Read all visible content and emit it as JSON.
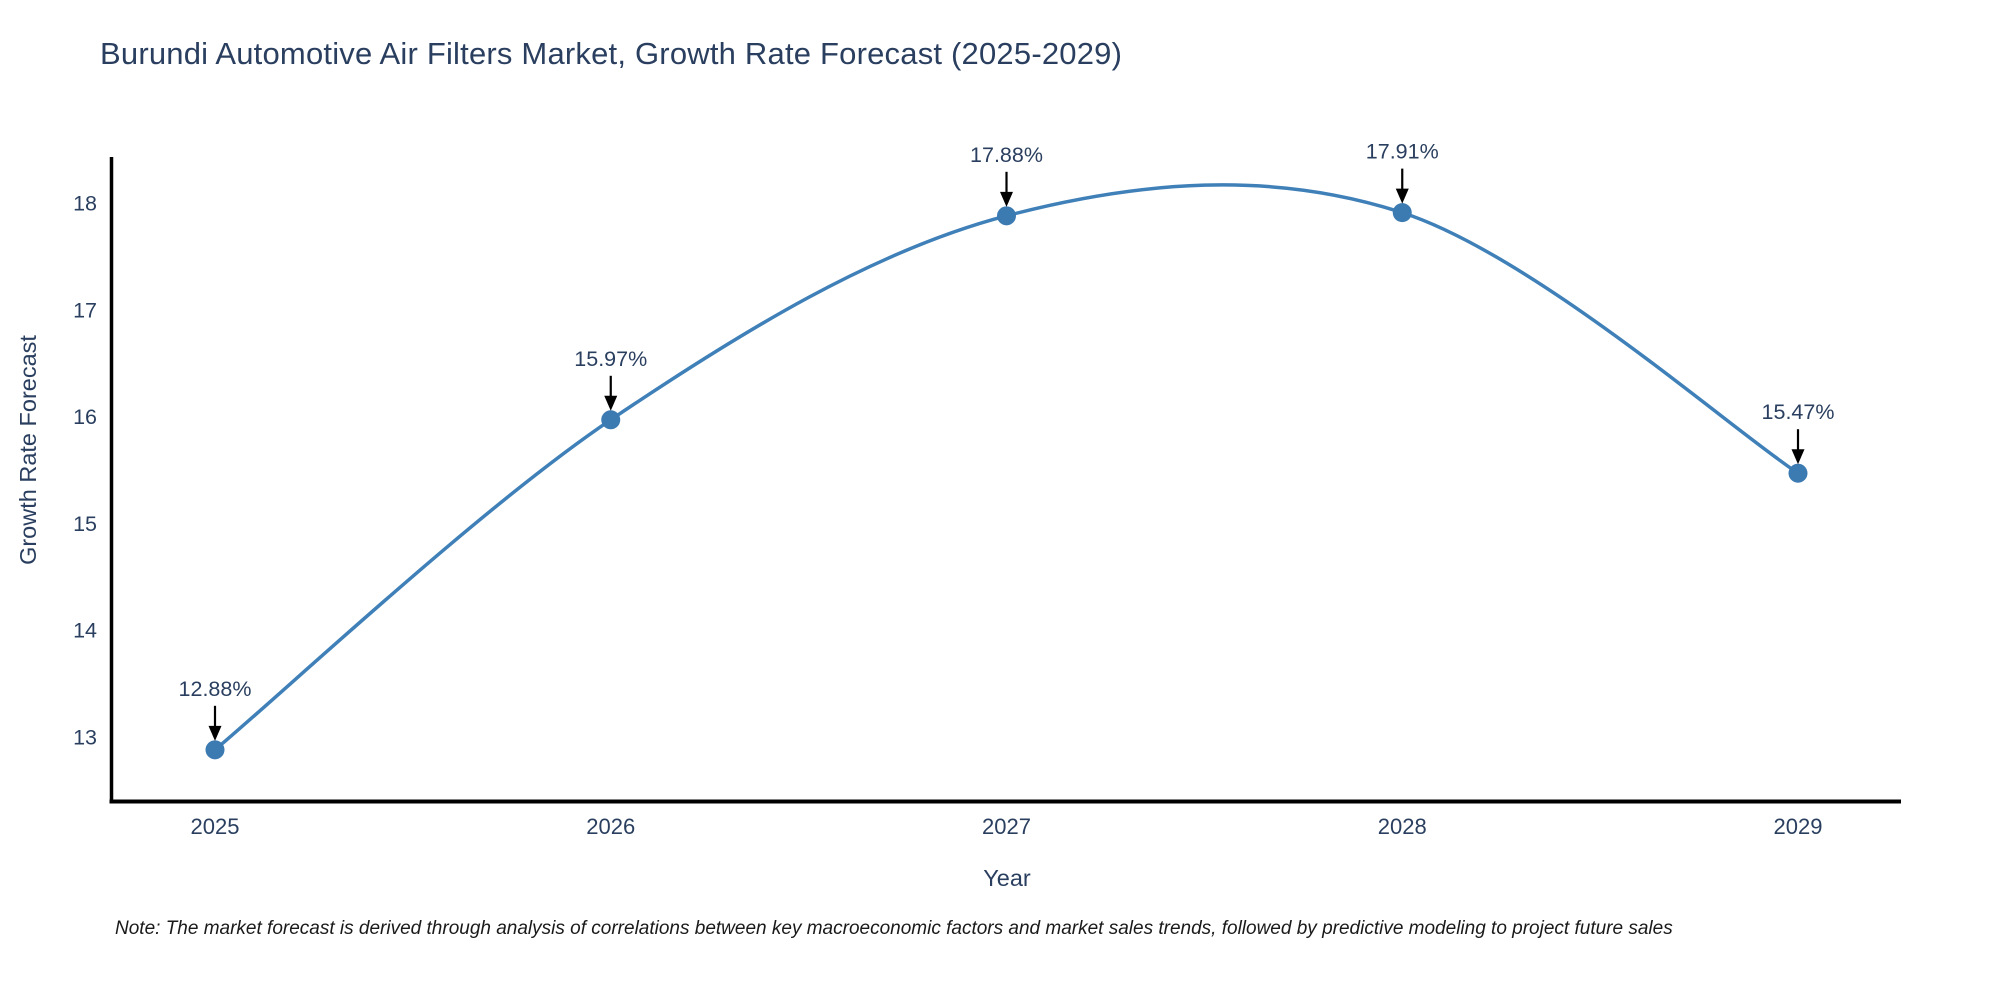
{
  "title": "Burundi Automotive Air Filters Market, Growth Rate Forecast (2025-2029)",
  "note": "Note: The market forecast is derived through analysis of correlations between key macroeconomic factors and market sales trends, followed by predictive modeling to project future sales",
  "chart_data": {
    "type": "line",
    "title": "Burundi Automotive Air Filters Market, Growth Rate Forecast (2025-2029)",
    "xlabel": "Year",
    "ylabel": "Growth Rate Forecast",
    "categories": [
      2025,
      2026,
      2027,
      2028,
      2029
    ],
    "values": [
      12.88,
      15.97,
      17.88,
      17.91,
      15.47
    ],
    "point_labels": [
      "12.88%",
      "15.97%",
      "17.88%",
      "17.91%",
      "15.47%"
    ],
    "yticks": [
      13,
      14,
      15,
      16,
      17,
      18
    ],
    "ylim": [
      12.4,
      18.4
    ],
    "line_shape": "spline",
    "grid": false,
    "legend": "none",
    "colors": {
      "line": "#4080b8",
      "marker": "#3c7ab2",
      "axis": "#000000",
      "tick_text": "#2a3f5f",
      "annotation_text": "#2a3f5f",
      "arrow": "#000000",
      "background": "#ffffff"
    }
  }
}
